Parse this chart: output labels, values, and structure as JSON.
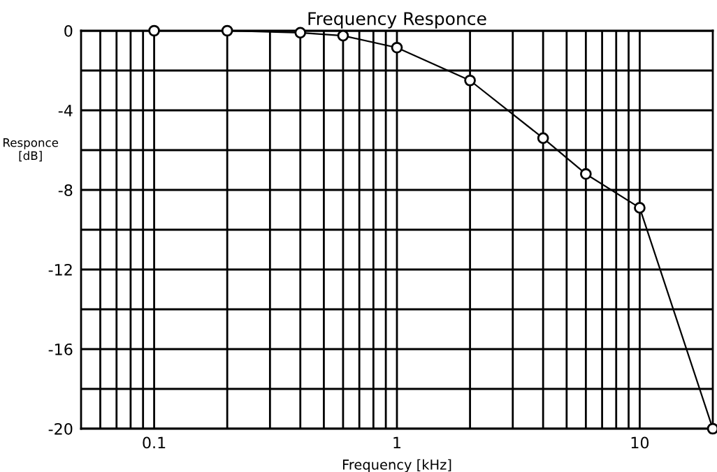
{
  "chart_data": {
    "type": "line",
    "title": "Frequency Responce",
    "xlabel": "Frequency [kHz]",
    "ylabel": "Responce\n[dB]",
    "x": [
      0.1,
      0.2,
      0.4,
      0.6,
      1,
      2,
      4,
      6,
      10,
      20
    ],
    "series": [
      {
        "color": "#000000",
        "values": [
          0,
          0,
          -0.1,
          -0.25,
          -0.85,
          -2.5,
          -5.4,
          -7.2,
          -8.9,
          -20
        ]
      }
    ],
    "log": "x",
    "xlim": [
      0.05,
      20
    ],
    "ylim": [
      -20,
      0
    ],
    "xticks": [
      {
        "value": 0.06,
        "label": null
      },
      {
        "value": 0.07,
        "label": null
      },
      {
        "value": 0.08,
        "label": null
      },
      {
        "value": 0.09,
        "label": null
      },
      0.1,
      {
        "value": 0.2,
        "label": null
      },
      {
        "value": 0.3,
        "label": null
      },
      {
        "value": 0.4,
        "label": null
      },
      {
        "value": 0.5,
        "label": null
      },
      {
        "value": 0.6,
        "label": null
      },
      {
        "value": 0.7,
        "label": null
      },
      {
        "value": 0.8,
        "label": null
      },
      {
        "value": 0.9,
        "label": null
      },
      1,
      {
        "value": 2,
        "label": null
      },
      {
        "value": 3,
        "label": null
      },
      {
        "value": 4,
        "label": null
      },
      {
        "value": 5,
        "label": null
      },
      {
        "value": 6,
        "label": null
      },
      {
        "value": 7,
        "label": null
      },
      {
        "value": 8,
        "label": null
      },
      {
        "value": 9,
        "label": null
      },
      10
    ],
    "yticks": [
      -20,
      {
        "value": -18,
        "label": null
      },
      -16,
      {
        "value": -14,
        "label": null
      },
      -12,
      {
        "value": -10,
        "label": null
      },
      -8,
      {
        "value": -6,
        "label": null
      },
      -4,
      {
        "value": -2,
        "label": null
      },
      0
    ],
    "grid": true,
    "marker": "circle",
    "line_style": "solid"
  }
}
